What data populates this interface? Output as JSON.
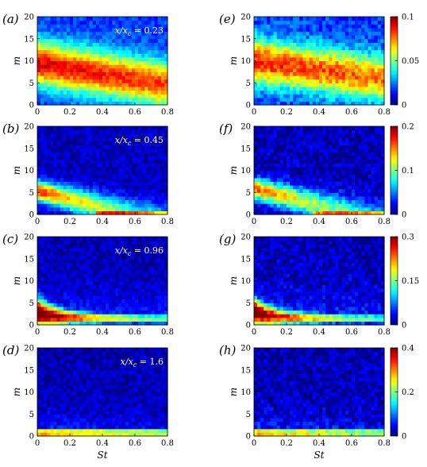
{
  "chart_data": {
    "type": "heatmap",
    "colormap": "jet",
    "x_range": [
      0,
      0.8
    ],
    "y_range": [
      0,
      20
    ],
    "x_ticks": [
      "0",
      "0.2",
      "0.4",
      "0.6",
      "0.8"
    ],
    "y_ticks": [
      "0",
      "5",
      "10",
      "15",
      "20"
    ],
    "xlabel": "St",
    "ylabel": "m",
    "panels": [
      {
        "label": "(a)",
        "annotation": "x/x_c = 0.23",
        "vmax": 0.1,
        "peak_m": 9.5,
        "peak_value_fraction": 0.9,
        "column": "left",
        "row": 1
      },
      {
        "label": "(b)",
        "annotation": "x/x_c = 0.45",
        "vmax": 0.2,
        "peak_m": 5.5,
        "peak_value_fraction": 0.7,
        "column": "left",
        "row": 2
      },
      {
        "label": "(c)",
        "annotation": "x/x_c = 0.96",
        "vmax": 0.3,
        "peak_m": 1.5,
        "peak_value_fraction": 0.9,
        "column": "left",
        "row": 3
      },
      {
        "label": "(d)",
        "annotation": "x/x_c = 1.6",
        "vmax": 0.4,
        "peak_m": 0.8,
        "peak_value_fraction": 0.9,
        "column": "left",
        "row": 4
      },
      {
        "label": "(e)",
        "annotation": "",
        "vmax": 0.1,
        "peak_m": 10,
        "peak_value_fraction": 0.85,
        "column": "right",
        "row": 1
      },
      {
        "label": "(f)",
        "annotation": "",
        "vmax": 0.2,
        "peak_m": 6,
        "peak_value_fraction": 0.65,
        "column": "right",
        "row": 2
      },
      {
        "label": "(g)",
        "annotation": "",
        "vmax": 0.3,
        "peak_m": 1.5,
        "peak_value_fraction": 0.85,
        "column": "right",
        "row": 3
      },
      {
        "label": "(h)",
        "annotation": "",
        "vmax": 0.4,
        "peak_m": 0.8,
        "peak_value_fraction": 0.85,
        "column": "right",
        "row": 4
      }
    ],
    "colorbars": [
      {
        "row": 1,
        "ticks": [
          "0",
          "0.05",
          "0.1"
        ]
      },
      {
        "row": 2,
        "ticks": [
          "0",
          "0.1",
          "0.2"
        ]
      },
      {
        "row": 3,
        "ticks": [
          "0",
          "0.15",
          "0.3"
        ]
      },
      {
        "row": 4,
        "ticks": [
          "0",
          "0.2",
          "0.4"
        ]
      }
    ]
  }
}
